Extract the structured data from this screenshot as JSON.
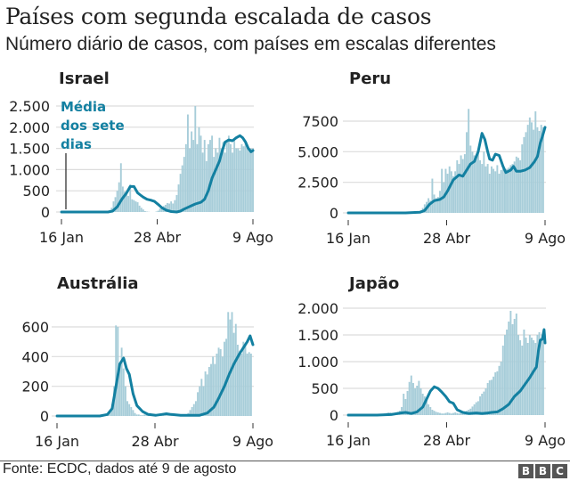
{
  "header": {
    "title": "Países com segunda escalada de casos",
    "subtitle": "Número diário de casos, com países em escalas diferentes"
  },
  "footer": {
    "source": "Fonte: ECDC, dados até 9 de agosto",
    "logo_letters": [
      "B",
      "B",
      "C"
    ]
  },
  "colors": {
    "line": "#1380a1",
    "bars": "#a7cdd9",
    "grid": "#dcdcdc",
    "annotation": "#1380a1"
  },
  "chart_data": [
    {
      "type": "bar+line",
      "title": "Israel",
      "annotation": [
        "Média",
        "dos sete",
        "dias"
      ],
      "x_ticks": [
        "16 Jan",
        "28 Abr",
        "9 Ago"
      ],
      "x_tick_days": [
        0,
        103,
        206
      ],
      "y_ticks": [
        "0",
        "500",
        "1.000",
        "1.500",
        "2.000",
        "2.500"
      ],
      "y_tick_values": [
        0,
        500,
        1000,
        1500,
        2000,
        2500
      ],
      "ylim": [
        0,
        2500
      ],
      "series": [
        {
          "name": "Média dos sete dias",
          "kind": "line",
          "points": [
            [
              0,
              0
            ],
            [
              50,
              0
            ],
            [
              55,
              20
            ],
            [
              60,
              120
            ],
            [
              65,
              300
            ],
            [
              70,
              450
            ],
            [
              74,
              600
            ],
            [
              78,
              600
            ],
            [
              82,
              450
            ],
            [
              85,
              400
            ],
            [
              88,
              350
            ],
            [
              92,
              300
            ],
            [
              96,
              280
            ],
            [
              100,
              250
            ],
            [
              104,
              180
            ],
            [
              108,
              100
            ],
            [
              113,
              40
            ],
            [
              118,
              10
            ],
            [
              124,
              0
            ],
            [
              128,
              20
            ],
            [
              132,
              70
            ],
            [
              136,
              110
            ],
            [
              140,
              150
            ],
            [
              144,
              190
            ],
            [
              150,
              230
            ],
            [
              154,
              300
            ],
            [
              158,
              500
            ],
            [
              162,
              800
            ],
            [
              166,
              1000
            ],
            [
              170,
              1200
            ],
            [
              173,
              1450
            ],
            [
              176,
              1650
            ],
            [
              180,
              1700
            ],
            [
              184,
              1680
            ],
            [
              188,
              1750
            ],
            [
              192,
              1800
            ],
            [
              195,
              1750
            ],
            [
              198,
              1650
            ],
            [
              201,
              1500
            ],
            [
              204,
              1420
            ],
            [
              206,
              1450
            ]
          ]
        },
        {
          "name": "Casos diários",
          "kind": "bar",
          "step_days": 2,
          "values": [
            0,
            0,
            0,
            0,
            0,
            0,
            0,
            0,
            0,
            0,
            0,
            0,
            0,
            0,
            0,
            0,
            0,
            0,
            0,
            0,
            0,
            0,
            0,
            0,
            0,
            10,
            40,
            100,
            250,
            350,
            500,
            700,
            1150,
            600,
            480,
            420,
            380,
            650,
            300,
            280,
            250,
            230,
            150,
            100,
            60,
            20,
            10,
            5,
            0,
            0,
            0,
            10,
            30,
            80,
            120,
            140,
            170,
            210,
            200,
            250,
            200,
            280,
            400,
            650,
            900,
            1100,
            1300,
            1600,
            2300,
            1500,
            1900,
            1700,
            2500,
            1600,
            2000,
            1800,
            1400,
            1700,
            1200,
            1600,
            1700,
            1800,
            1300,
            1500,
            1400,
            1750,
            1500,
            1650,
            1400,
            1700,
            1800,
            1600,
            1400,
            1700,
            1500,
            1500,
            1450,
            1600,
            1550,
            1650,
            1500,
            1450,
            1500,
            1500
          ]
        }
      ]
    },
    {
      "type": "bar+line",
      "title": "Peru",
      "x_ticks": [
        "16 Jan",
        "28 Abr",
        "9 Ago"
      ],
      "x_tick_days": [
        0,
        103,
        206
      ],
      "y_ticks": [
        "0",
        "2.500",
        "5.000",
        "7500"
      ],
      "y_tick_values": [
        0,
        2500,
        5000,
        7500
      ],
      "ylim": [
        0,
        8500
      ],
      "series": [
        {
          "name": "Média dos sete dias",
          "kind": "line",
          "points": [
            [
              0,
              0
            ],
            [
              60,
              0
            ],
            [
              75,
              50
            ],
            [
              80,
              200
            ],
            [
              85,
              700
            ],
            [
              90,
              1000
            ],
            [
              96,
              1100
            ],
            [
              100,
              1300
            ],
            [
              104,
              1800
            ],
            [
              110,
              2700
            ],
            [
              116,
              3100
            ],
            [
              120,
              3000
            ],
            [
              124,
              3500
            ],
            [
              128,
              4000
            ],
            [
              132,
              4200
            ],
            [
              136,
              5000
            ],
            [
              140,
              6500
            ],
            [
              143,
              6000
            ],
            [
              146,
              5000
            ],
            [
              148,
              4400
            ],
            [
              151,
              4300
            ],
            [
              154,
              4800
            ],
            [
              158,
              4700
            ],
            [
              162,
              3800
            ],
            [
              165,
              3300
            ],
            [
              170,
              3500
            ],
            [
              173,
              3800
            ],
            [
              176,
              3400
            ],
            [
              180,
              3400
            ],
            [
              185,
              3500
            ],
            [
              190,
              3700
            ],
            [
              195,
              4200
            ],
            [
              198,
              4600
            ],
            [
              201,
              5700
            ],
            [
              203,
              6200
            ],
            [
              206,
              7000
            ]
          ]
        },
        {
          "name": "Casos diários",
          "kind": "bar",
          "step_days": 2,
          "values": [
            0,
            0,
            0,
            0,
            0,
            0,
            0,
            0,
            0,
            0,
            0,
            0,
            0,
            0,
            0,
            0,
            0,
            0,
            0,
            0,
            0,
            0,
            0,
            0,
            0,
            0,
            0,
            0,
            0,
            0,
            0,
            0,
            0,
            10,
            20,
            40,
            60,
            100,
            200,
            400,
            700,
            900,
            1200,
            1000,
            2800,
            1500,
            1200,
            1300,
            1800,
            3600,
            2500,
            3600,
            3200,
            3800,
            3400,
            3000,
            3400,
            4300,
            4000,
            4700,
            4400,
            4800,
            6600,
            8700,
            5500,
            5000,
            4700,
            4600,
            5200,
            4300,
            4000,
            5000,
            3800,
            4000,
            3200,
            3800,
            3600,
            3400,
            3900,
            3200,
            3500,
            3600,
            3400,
            3600,
            3700,
            3900,
            4000,
            4200,
            4600,
            4500,
            4300,
            5600,
            6200,
            6600,
            7200,
            7800,
            7400,
            6800,
            8300,
            7000,
            6700,
            7200,
            7000
          ]
        }
      ]
    },
    {
      "type": "bar+line",
      "title": "Austrália",
      "x_ticks": [
        "16 Jan",
        "28 Abr",
        "9 Ago"
      ],
      "x_tick_days": [
        0,
        103,
        206
      ],
      "y_ticks": [
        "0",
        "200",
        "400",
        "600"
      ],
      "y_tick_values": [
        0,
        200,
        400,
        600
      ],
      "ylim": [
        0,
        700
      ],
      "series": [
        {
          "name": "Média dos sete dias",
          "kind": "line",
          "points": [
            [
              0,
              0
            ],
            [
              45,
              0
            ],
            [
              53,
              10
            ],
            [
              58,
              50
            ],
            [
              62,
              200
            ],
            [
              66,
              350
            ],
            [
              70,
              390
            ],
            [
              73,
              320
            ],
            [
              76,
              280
            ],
            [
              80,
              150
            ],
            [
              84,
              70
            ],
            [
              90,
              30
            ],
            [
              96,
              10
            ],
            [
              104,
              5
            ],
            [
              110,
              10
            ],
            [
              115,
              15
            ],
            [
              120,
              10
            ],
            [
              130,
              5
            ],
            [
              140,
              5
            ],
            [
              150,
              5
            ],
            [
              158,
              20
            ],
            [
              165,
              60
            ],
            [
              170,
              120
            ],
            [
              176,
              200
            ],
            [
              181,
              280
            ],
            [
              186,
              350
            ],
            [
              192,
              420
            ],
            [
              196,
              460
            ],
            [
              200,
              500
            ],
            [
              203,
              540
            ],
            [
              206,
              480
            ]
          ]
        },
        {
          "name": "Casos diários",
          "kind": "bar",
          "step_days": 2,
          "values": [
            0,
            0,
            0,
            0,
            0,
            0,
            0,
            0,
            0,
            0,
            0,
            0,
            0,
            0,
            0,
            0,
            0,
            0,
            0,
            0,
            0,
            0,
            0,
            0,
            0,
            2,
            5,
            10,
            40,
            80,
            200,
            610,
            600,
            340,
            460,
            320,
            200,
            100,
            80,
            60,
            40,
            20,
            10,
            10,
            5,
            5,
            10,
            15,
            10,
            20,
            10,
            10,
            5,
            5,
            5,
            5,
            5,
            5,
            5,
            10,
            5,
            5,
            5,
            5,
            5,
            10,
            10,
            5,
            10,
            20,
            40,
            60,
            80,
            100,
            160,
            200,
            250,
            200,
            300,
            280,
            330,
            350,
            400,
            350,
            420,
            460,
            450,
            400,
            500,
            520,
            720,
            650,
            720,
            560,
            620,
            480,
            440,
            420,
            500,
            480,
            420,
            430,
            420
          ]
        }
      ]
    },
    {
      "type": "bar+line",
      "title": "Japão",
      "x_ticks": [
        "16 Jan",
        "28 Abr",
        "9 Ago"
      ],
      "x_tick_days": [
        0,
        103,
        206
      ],
      "y_ticks": [
        "0",
        "500",
        "1.000",
        "1.500",
        "2.000"
      ],
      "y_tick_values": [
        0,
        500,
        1000,
        1500,
        2000
      ],
      "ylim": [
        0,
        2000
      ],
      "series": [
        {
          "name": "Média dos sete dias",
          "kind": "line",
          "points": [
            [
              0,
              0
            ],
            [
              30,
              0
            ],
            [
              45,
              10
            ],
            [
              55,
              40
            ],
            [
              60,
              50
            ],
            [
              66,
              30
            ],
            [
              72,
              60
            ],
            [
              78,
              150
            ],
            [
              82,
              300
            ],
            [
              86,
              450
            ],
            [
              90,
              530
            ],
            [
              94,
              500
            ],
            [
              98,
              430
            ],
            [
              102,
              350
            ],
            [
              106,
              250
            ],
            [
              110,
              220
            ],
            [
              114,
              100
            ],
            [
              120,
              50
            ],
            [
              126,
              30
            ],
            [
              134,
              40
            ],
            [
              140,
              30
            ],
            [
              146,
              40
            ],
            [
              150,
              50
            ],
            [
              156,
              60
            ],
            [
              162,
              120
            ],
            [
              168,
              200
            ],
            [
              174,
              350
            ],
            [
              180,
              450
            ],
            [
              186,
              600
            ],
            [
              190,
              700
            ],
            [
              194,
              820
            ],
            [
              197,
              900
            ],
            [
              199,
              1200
            ],
            [
              201,
              1400
            ],
            [
              203,
              1420
            ],
            [
              205,
              1600
            ],
            [
              206,
              1350
            ]
          ]
        },
        {
          "name": "Casos diários",
          "kind": "bar",
          "step_days": 2,
          "values": [
            0,
            0,
            0,
            0,
            0,
            0,
            0,
            0,
            0,
            0,
            0,
            0,
            0,
            0,
            0,
            5,
            10,
            15,
            20,
            30,
            40,
            50,
            50,
            40,
            30,
            40,
            60,
            80,
            150,
            400,
            300,
            450,
            620,
            740,
            600,
            500,
            550,
            640,
            500,
            400,
            350,
            300,
            200,
            150,
            100,
            80,
            60,
            50,
            40,
            30,
            30,
            40,
            50,
            40,
            30,
            40,
            50,
            40,
            30,
            50,
            60,
            70,
            80,
            100,
            120,
            160,
            200,
            240,
            260,
            350,
            400,
            440,
            500,
            600,
            650,
            660,
            720,
            800,
            820,
            920,
            1000,
            1300,
            1500,
            1600,
            1750,
            1950,
            1700,
            1800,
            1900,
            1500,
            1400,
            1300,
            1600,
            1450,
            1350,
            1500,
            1450,
            1400,
            1350,
            1500,
            1550,
            1400,
            1450
          ]
        }
      ]
    }
  ]
}
